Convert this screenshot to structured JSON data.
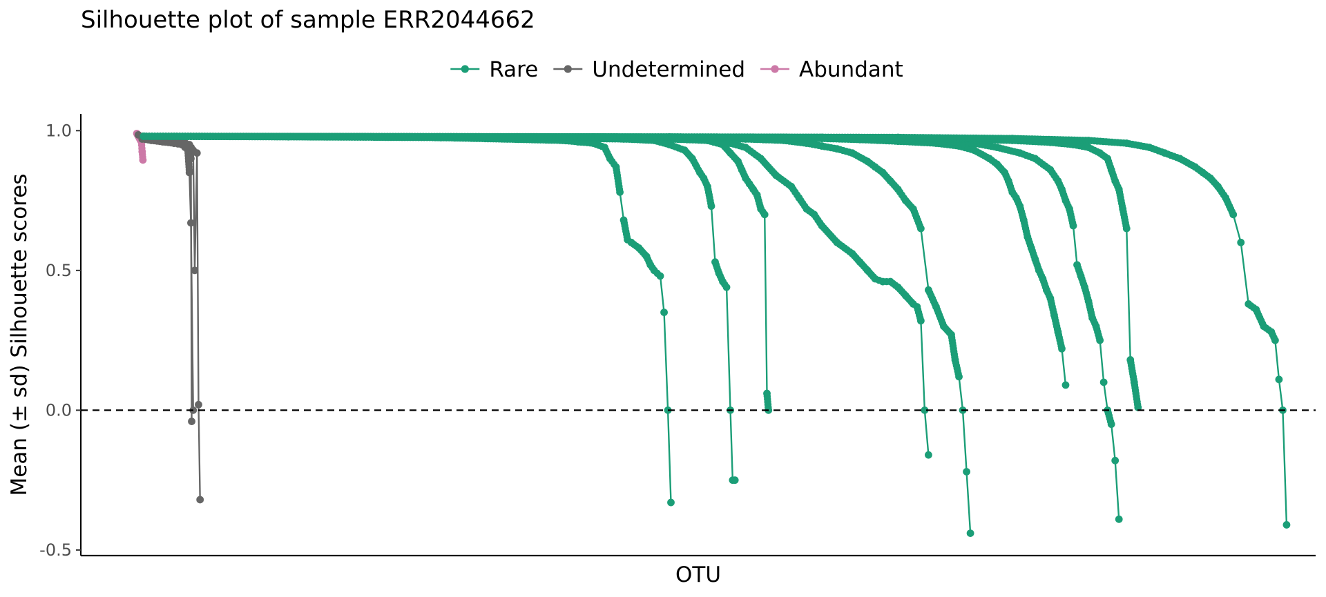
{
  "chart_data": {
    "type": "line",
    "title": "Silhouette plot of sample ERR2044662",
    "xlabel": "OTU",
    "ylabel": "Mean (± sd) Silhouette scores",
    "ylim": [
      -0.52,
      1.06
    ],
    "yticks": [
      -0.5,
      0.0,
      0.5,
      1.0
    ],
    "ytick_labels": [
      "-0.5",
      "0.0",
      "0.5",
      "1.0"
    ],
    "reference_line": {
      "y": 0,
      "style": "dashed"
    },
    "grid": false,
    "legend_position": "top",
    "colors": {
      "Rare": "#1b9e77",
      "Undetermined": "#666666",
      "Abundant": "#cc79a7"
    },
    "series": [
      {
        "name": "Abundant",
        "color": "#cc79a7",
        "x": [
          1,
          2,
          3,
          4,
          5,
          6,
          7,
          8,
          9
        ],
        "y": [
          0.99,
          0.985,
          0.98,
          0.975,
          0.97,
          0.965,
          0.96,
          0.925,
          0.895
        ]
      },
      {
        "name": "Undetermined",
        "color": "#666666",
        "x": [
          3,
          10,
          20,
          30,
          40,
          50,
          60,
          68,
          70,
          72,
          75
        ],
        "y": [
          0.985,
          0.98,
          0.975,
          0.965,
          0.96,
          0.955,
          0.95,
          0.93,
          0.85,
          0.67,
          0.0
        ]
      },
      {
        "name": "Undetermined",
        "color": "#666666",
        "x": [
          8,
          20,
          35,
          50,
          60,
          65,
          70,
          72,
          73
        ],
        "y": [
          0.97,
          0.965,
          0.96,
          0.955,
          0.95,
          0.945,
          0.94,
          0.9,
          -0.04
        ]
      },
      {
        "name": "Undetermined",
        "color": "#666666",
        "x": [
          10,
          25,
          40,
          55,
          65,
          70,
          75,
          77,
          80,
          82,
          84
        ],
        "y": [
          0.975,
          0.97,
          0.965,
          0.96,
          0.955,
          0.95,
          0.93,
          0.5,
          0.92,
          0.02,
          -0.32
        ]
      },
      {
        "name": "Rare",
        "color": "#1b9e77",
        "x": [
          10,
          200,
          400,
          560,
          580,
          600,
          615,
          622,
          630,
          635,
          640,
          645,
          650,
          660,
          670,
          675,
          680,
          688,
          693,
          698,
          702
        ],
        "y": [
          0.98,
          0.978,
          0.975,
          0.965,
          0.96,
          0.955,
          0.94,
          0.9,
          0.87,
          0.78,
          0.68,
          0.61,
          0.6,
          0.58,
          0.55,
          0.52,
          0.5,
          0.48,
          0.35,
          0.0,
          -0.33
        ]
      },
      {
        "name": "Rare",
        "color": "#1b9e77",
        "x": [
          10,
          250,
          500,
          640,
          680,
          700,
          720,
          730,
          740,
          745,
          750,
          755,
          760,
          765,
          770,
          775,
          780,
          783,
          786
        ],
        "y": [
          0.98,
          0.978,
          0.975,
          0.97,
          0.965,
          0.95,
          0.93,
          0.9,
          0.85,
          0.83,
          0.8,
          0.73,
          0.53,
          0.49,
          0.46,
          0.44,
          0.0,
          -0.25,
          -0.25
        ]
      },
      {
        "name": "Rare",
        "color": "#1b9e77",
        "x": [
          10,
          300,
          600,
          700,
          750,
          770,
          780,
          790,
          795,
          800,
          805,
          810,
          815,
          820,
          825,
          828,
          830
        ],
        "y": [
          0.98,
          0.978,
          0.975,
          0.97,
          0.965,
          0.95,
          0.92,
          0.89,
          0.86,
          0.83,
          0.81,
          0.79,
          0.77,
          0.72,
          0.7,
          0.06,
          0.0
        ]
      },
      {
        "name": "Rare",
        "color": "#1b9e77",
        "x": [
          10,
          300,
          600,
          700,
          750,
          780,
          800,
          820,
          840,
          860,
          870,
          880,
          890,
          900,
          920,
          940,
          950,
          960,
          970,
          980,
          990,
          1000,
          1010,
          1020,
          1025,
          1030,
          1035,
          1040
        ],
        "y": [
          0.98,
          0.978,
          0.975,
          0.972,
          0.965,
          0.955,
          0.94,
          0.9,
          0.84,
          0.8,
          0.76,
          0.72,
          0.7,
          0.66,
          0.6,
          0.56,
          0.53,
          0.5,
          0.47,
          0.46,
          0.46,
          0.44,
          0.41,
          0.38,
          0.37,
          0.32,
          0.0,
          -0.16
        ]
      },
      {
        "name": "Rare",
        "color": "#1b9e77",
        "x": [
          10,
          400,
          700,
          800,
          850,
          880,
          900,
          920,
          940,
          960,
          970,
          980,
          990,
          1000,
          1010,
          1020,
          1030,
          1040,
          1050,
          1060,
          1070,
          1075,
          1080,
          1085,
          1090,
          1095
        ],
        "y": [
          0.98,
          0.978,
          0.975,
          0.97,
          0.965,
          0.955,
          0.945,
          0.935,
          0.92,
          0.89,
          0.87,
          0.85,
          0.82,
          0.79,
          0.75,
          0.72,
          0.65,
          0.43,
          0.37,
          0.3,
          0.27,
          0.18,
          0.12,
          0.0,
          -0.22,
          -0.44
        ]
      },
      {
        "name": "Rare",
        "color": "#1b9e77",
        "x": [
          10,
          500,
          800,
          900,
          950,
          1000,
          1050,
          1080,
          1100,
          1120,
          1130,
          1140,
          1145,
          1150,
          1155,
          1160,
          1165,
          1170,
          1175,
          1180,
          1185,
          1190,
          1195,
          1200,
          1205,
          1210,
          1215,
          1220
        ],
        "y": [
          0.98,
          0.978,
          0.975,
          0.972,
          0.968,
          0.962,
          0.955,
          0.945,
          0.93,
          0.9,
          0.88,
          0.85,
          0.82,
          0.78,
          0.76,
          0.73,
          0.68,
          0.62,
          0.58,
          0.54,
          0.5,
          0.47,
          0.43,
          0.4,
          0.34,
          0.28,
          0.22,
          0.09
        ]
      },
      {
        "name": "Rare",
        "color": "#1b9e77",
        "x": [
          10,
          500,
          800,
          950,
          1050,
          1100,
          1130,
          1160,
          1180,
          1200,
          1210,
          1215,
          1220,
          1225,
          1230,
          1235,
          1240,
          1245,
          1250,
          1255,
          1260,
          1265,
          1270,
          1275,
          1280,
          1285,
          1290
        ],
        "y": [
          0.98,
          0.978,
          0.976,
          0.972,
          0.965,
          0.955,
          0.94,
          0.92,
          0.9,
          0.86,
          0.82,
          0.79,
          0.75,
          0.72,
          0.66,
          0.52,
          0.48,
          0.44,
          0.39,
          0.33,
          0.3,
          0.25,
          0.1,
          0.0,
          -0.05,
          -0.18,
          -0.39
        ]
      },
      {
        "name": "Rare",
        "color": "#1b9e77",
        "x": [
          10,
          600,
          900,
          1050,
          1150,
          1200,
          1230,
          1250,
          1265,
          1275,
          1280,
          1285,
          1290,
          1295,
          1300,
          1305,
          1310,
          1315
        ],
        "y": [
          0.98,
          0.978,
          0.976,
          0.972,
          0.965,
          0.958,
          0.95,
          0.94,
          0.92,
          0.9,
          0.86,
          0.82,
          0.79,
          0.72,
          0.65,
          0.18,
          0.1,
          0.01
        ]
      },
      {
        "name": "Rare",
        "color": "#1b9e77",
        "x": [
          10,
          700,
          1000,
          1150,
          1250,
          1300,
          1330,
          1350,
          1370,
          1390,
          1400,
          1410,
          1420,
          1430,
          1440,
          1450,
          1460,
          1470,
          1480,
          1490,
          1495,
          1500,
          1505,
          1510
        ],
        "y": [
          0.98,
          0.978,
          0.976,
          0.972,
          0.965,
          0.955,
          0.94,
          0.92,
          0.9,
          0.87,
          0.85,
          0.83,
          0.8,
          0.76,
          0.7,
          0.6,
          0.38,
          0.36,
          0.3,
          0.28,
          0.25,
          0.11,
          0.0,
          -0.41
        ]
      }
    ]
  },
  "legend": {
    "items": [
      {
        "label": "Rare",
        "color": "#1b9e77"
      },
      {
        "label": "Undetermined",
        "color": "#666666"
      },
      {
        "label": "Abundant",
        "color": "#cc79a7"
      }
    ]
  }
}
